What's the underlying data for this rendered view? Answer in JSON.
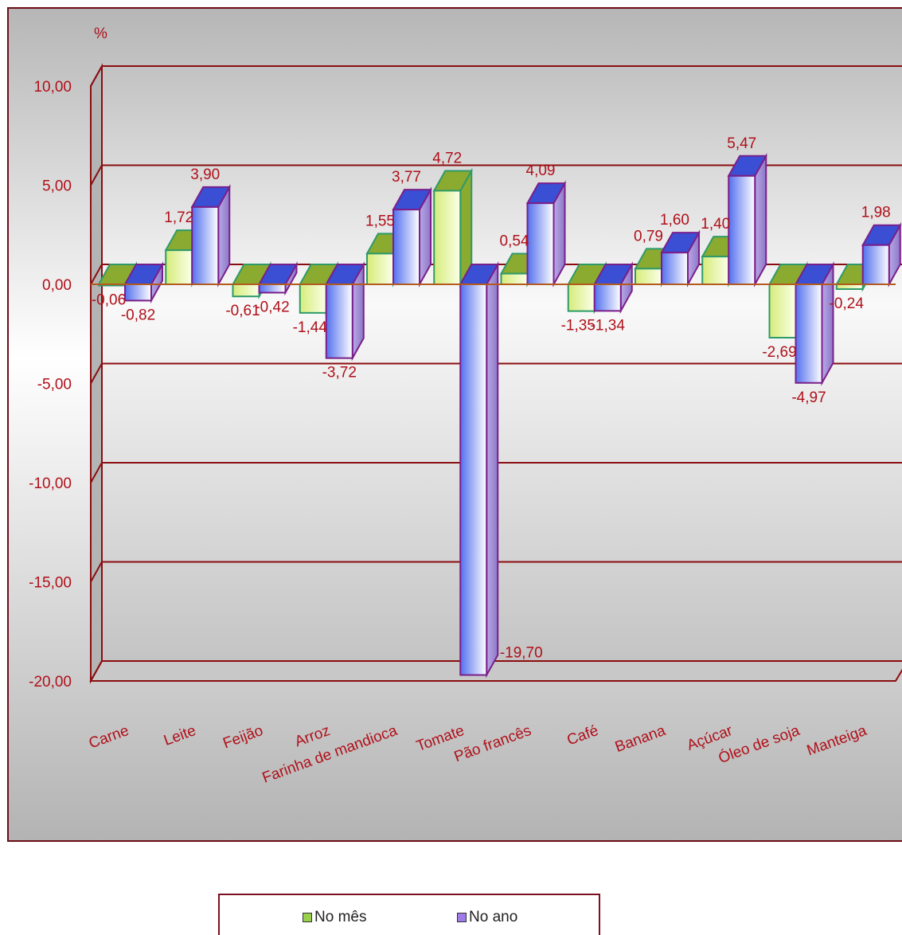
{
  "chart_data": {
    "type": "bar",
    "unit_label": "%",
    "categories": [
      "Carne",
      "Leite",
      "Feijão",
      "Arroz",
      "Farinha de mandioca",
      "Tomate",
      "Pão francês",
      "Café",
      "Banana",
      "Açúcar",
      "Óleo de soja",
      "Manteiga"
    ],
    "series": [
      {
        "name": "No mês",
        "values": [
          -0.06,
          1.72,
          -0.61,
          -1.44,
          1.55,
          4.72,
          0.54,
          -1.35,
          0.79,
          1.4,
          -2.69,
          -0.24
        ],
        "labels": [
          "-0,06",
          "1,72",
          "-0,61",
          "-1,44",
          "1,55",
          "4,72",
          "0,54",
          "-1,35",
          "0,79",
          "1,40",
          "-2,69",
          "-0,24"
        ]
      },
      {
        "name": "No ano",
        "values": [
          -0.82,
          3.9,
          -0.42,
          -3.72,
          3.77,
          -19.7,
          4.09,
          -1.34,
          1.6,
          5.47,
          -4.97,
          1.98
        ],
        "labels": [
          "-0,82",
          "3,90",
          "-0,42",
          "-3,72",
          "3,77",
          "-19,70",
          "4,09",
          "-1,34",
          "1,60",
          "5,47",
          "-4,97",
          "1,98"
        ]
      }
    ],
    "yticks": [
      10,
      5,
      0,
      -5,
      -10,
      -15,
      -20
    ],
    "ytick_labels": [
      "10,00",
      "5,00",
      "0,00",
      "-5,00",
      "-10,00",
      "-15,00",
      "-20,00"
    ],
    "ylim": [
      -20,
      10
    ],
    "grid": true,
    "legend_position": "bottom",
    "colors": {
      "series1_front": "#e4f39a",
      "series1_top": "#8aaa30",
      "series1_stroke": "#2e9a6a",
      "series2_front": "#6f86f0",
      "series2_top": "#3a4fd4",
      "series2_side": "#9c8ad8",
      "series2_stroke": "#7a1f8a",
      "grid": "#8b0d10",
      "text": "#b0101a"
    }
  },
  "legend": {
    "items": [
      {
        "label": "No mês",
        "color": "#9ad04a"
      },
      {
        "label": "No ano",
        "color": "#9f7ae8"
      }
    ]
  }
}
